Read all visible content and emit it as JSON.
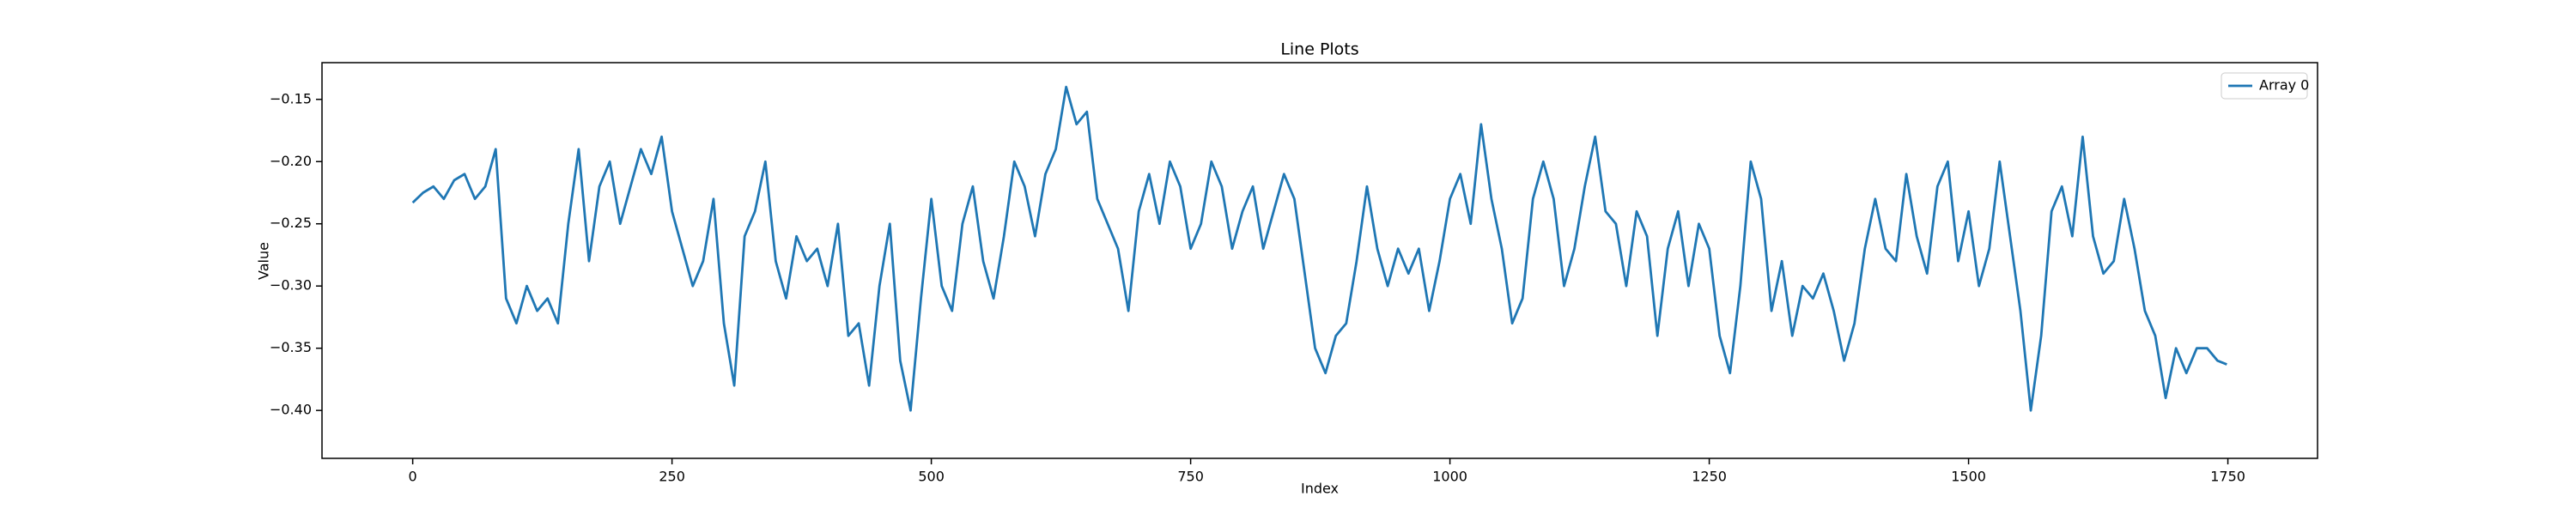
{
  "chart_data": {
    "type": "line",
    "title": "Line Plots",
    "x_label": "Index",
    "y_label": "Value",
    "legend": "upper right",
    "grid": false,
    "xlim": [
      -87.45,
      1836.45
    ],
    "ylim": [
      -0.4385,
      -0.1205
    ],
    "xticks": [
      0,
      250,
      500,
      750,
      1000,
      1250,
      1500,
      1750
    ],
    "yticks": [
      {
        "value": -0.4,
        "label": "−0.40"
      },
      {
        "value": -0.35,
        "label": "−0.35"
      },
      {
        "value": -0.3,
        "label": "−0.30"
      },
      {
        "value": -0.25,
        "label": "−0.25"
      },
      {
        "value": -0.2,
        "label": "−0.20"
      },
      {
        "value": -0.15,
        "label": "−0.15"
      }
    ],
    "x": [
      0,
      10,
      20,
      30,
      40,
      50,
      60,
      70,
      80,
      90,
      100,
      110,
      120,
      130,
      140,
      150,
      160,
      170,
      180,
      190,
      200,
      210,
      220,
      230,
      240,
      250,
      260,
      270,
      280,
      290,
      300,
      310,
      320,
      330,
      340,
      350,
      360,
      370,
      380,
      390,
      400,
      410,
      420,
      430,
      440,
      450,
      460,
      470,
      480,
      490,
      500,
      510,
      520,
      530,
      540,
      550,
      560,
      570,
      580,
      590,
      600,
      610,
      620,
      630,
      640,
      650,
      660,
      670,
      680,
      690,
      700,
      710,
      720,
      730,
      740,
      750,
      760,
      770,
      780,
      790,
      800,
      810,
      820,
      830,
      840,
      850,
      860,
      870,
      880,
      890,
      900,
      910,
      920,
      930,
      940,
      950,
      960,
      970,
      980,
      990,
      1000,
      1010,
      1020,
      1030,
      1040,
      1050,
      1060,
      1070,
      1080,
      1090,
      1100,
      1110,
      1120,
      1130,
      1140,
      1150,
      1160,
      1170,
      1180,
      1190,
      1200,
      1210,
      1220,
      1230,
      1240,
      1250,
      1260,
      1270,
      1280,
      1290,
      1300,
      1310,
      1320,
      1330,
      1340,
      1350,
      1360,
      1370,
      1380,
      1390,
      1400,
      1410,
      1420,
      1430,
      1440,
      1450,
      1460,
      1470,
      1480,
      1490,
      1500,
      1510,
      1520,
      1530,
      1540,
      1550,
      1560,
      1570,
      1580,
      1590,
      1600,
      1610,
      1620,
      1630,
      1640,
      1650,
      1660,
      1670,
      1680,
      1690,
      1700,
      1710,
      1720,
      1730,
      1740,
      1749
    ],
    "series": [
      {
        "name": "Array 0",
        "color": "#1f77b4",
        "values": [
          -0.233,
          -0.225,
          -0.22,
          -0.23,
          -0.215,
          -0.21,
          -0.23,
          -0.22,
          -0.19,
          -0.31,
          -0.33,
          -0.3,
          -0.32,
          -0.31,
          -0.33,
          -0.25,
          -0.19,
          -0.28,
          -0.22,
          -0.2,
          -0.25,
          -0.22,
          -0.19,
          -0.21,
          -0.18,
          -0.24,
          -0.27,
          -0.3,
          -0.28,
          -0.23,
          -0.33,
          -0.38,
          -0.26,
          -0.24,
          -0.2,
          -0.28,
          -0.31,
          -0.26,
          -0.28,
          -0.27,
          -0.3,
          -0.25,
          -0.34,
          -0.33,
          -0.38,
          -0.3,
          -0.25,
          -0.36,
          -0.4,
          -0.31,
          -0.23,
          -0.3,
          -0.32,
          -0.25,
          -0.22,
          -0.28,
          -0.31,
          -0.26,
          -0.2,
          -0.22,
          -0.26,
          -0.21,
          -0.19,
          -0.14,
          -0.17,
          -0.16,
          -0.23,
          -0.25,
          -0.27,
          -0.32,
          -0.24,
          -0.21,
          -0.25,
          -0.2,
          -0.22,
          -0.27,
          -0.25,
          -0.2,
          -0.22,
          -0.27,
          -0.24,
          -0.22,
          -0.27,
          -0.24,
          -0.21,
          -0.23,
          -0.29,
          -0.35,
          -0.37,
          -0.34,
          -0.33,
          -0.28,
          -0.22,
          -0.27,
          -0.3,
          -0.27,
          -0.29,
          -0.27,
          -0.32,
          -0.28,
          -0.23,
          -0.21,
          -0.25,
          -0.17,
          -0.23,
          -0.27,
          -0.33,
          -0.31,
          -0.23,
          -0.2,
          -0.23,
          -0.3,
          -0.27,
          -0.22,
          -0.18,
          -0.24,
          -0.25,
          -0.3,
          -0.24,
          -0.26,
          -0.34,
          -0.27,
          -0.24,
          -0.3,
          -0.25,
          -0.27,
          -0.34,
          -0.37,
          -0.3,
          -0.2,
          -0.23,
          -0.32,
          -0.28,
          -0.34,
          -0.3,
          -0.31,
          -0.29,
          -0.32,
          -0.36,
          -0.33,
          -0.27,
          -0.23,
          -0.27,
          -0.28,
          -0.21,
          -0.26,
          -0.29,
          -0.22,
          -0.2,
          -0.28,
          -0.24,
          -0.3,
          -0.27,
          -0.2,
          -0.26,
          -0.32,
          -0.4,
          -0.34,
          -0.24,
          -0.22,
          -0.26,
          -0.18,
          -0.26,
          -0.29,
          -0.28,
          -0.23,
          -0.27,
          -0.32,
          -0.34,
          -0.39,
          -0.35,
          -0.37,
          -0.35,
          -0.35,
          -0.36,
          -0.363
        ]
      }
    ]
  }
}
